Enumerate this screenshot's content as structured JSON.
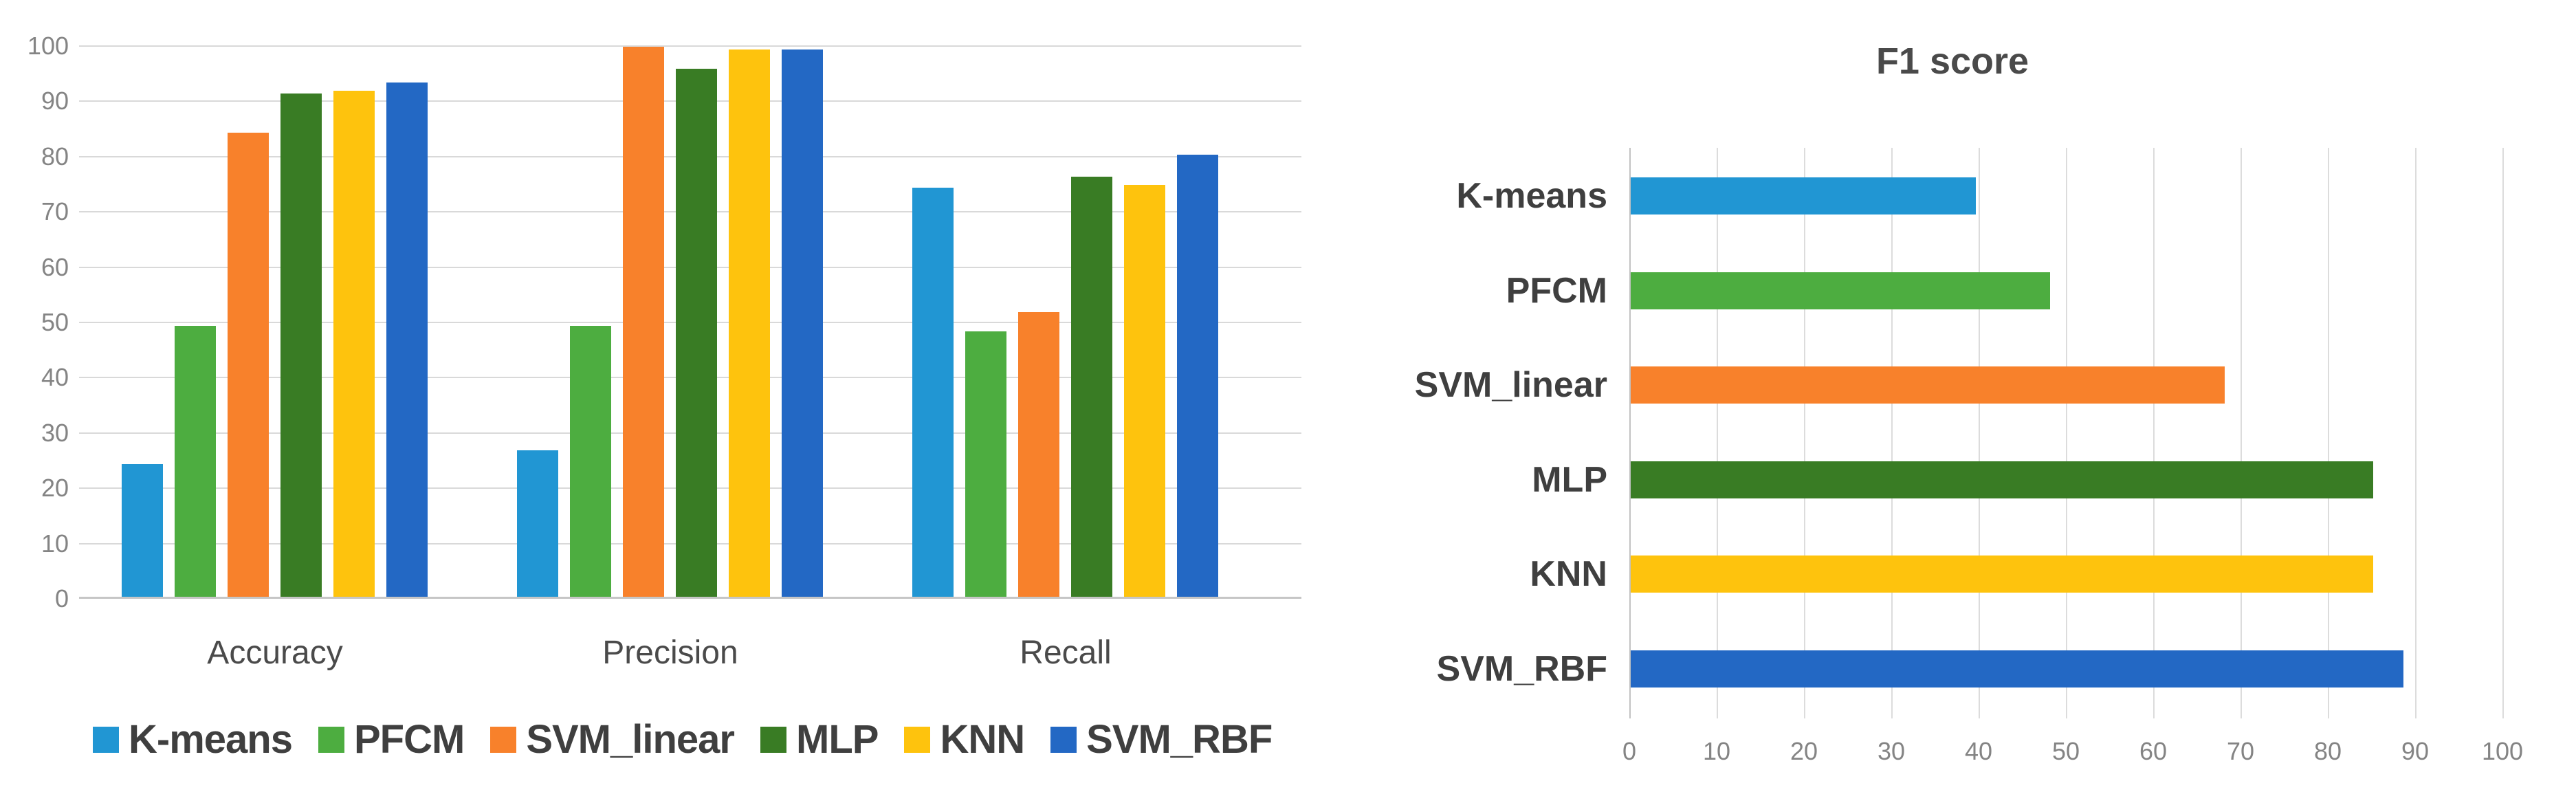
{
  "page": {
    "background": "#ffffff"
  },
  "palette": {
    "kmeans": "#2196d3",
    "pfcm": "#4dad40",
    "svm_linear": "#f8812b",
    "mlp": "#397c24",
    "knn": "#fec30d",
    "svm_rbf": "#2368c4",
    "gridline": "#d9d9d9",
    "axis_line": "#c6c6c6",
    "tick_text": "#848484",
    "label_text": "#3f3f3f"
  },
  "chart_data": [
    {
      "type": "bar",
      "title": "",
      "categories": [
        "Accuracy",
        "Precision",
        "Recall"
      ],
      "series": [
        {
          "name": "K-means",
          "color": "#2196d3",
          "values": [
            24,
            26.5,
            74
          ]
        },
        {
          "name": "PFCM",
          "color": "#4dad40",
          "values": [
            49,
            49,
            48
          ]
        },
        {
          "name": "SVM_linear",
          "color": "#f8812b",
          "values": [
            84,
            99.5,
            51.5
          ]
        },
        {
          "name": "MLP",
          "color": "#397c24",
          "values": [
            91,
            95.5,
            76
          ]
        },
        {
          "name": "KNN",
          "color": "#fec30d",
          "values": [
            91.5,
            99,
            74.5
          ]
        },
        {
          "name": "SVM_RBF",
          "color": "#2368c4",
          "values": [
            93,
            99,
            80
          ]
        }
      ],
      "ylim": [
        0,
        100
      ],
      "yticks": [
        "0",
        "10",
        "20",
        "30",
        "40",
        "50",
        "60",
        "70",
        "80",
        "90",
        "100"
      ],
      "grid": "horizontal",
      "legend_position": "bottom-left"
    },
    {
      "type": "bar-horizontal",
      "title": "F1 score",
      "categories": [
        "K-means",
        "PFCM",
        "SVM_linear",
        "MLP",
        "KNN",
        "SVM_RBF"
      ],
      "values": [
        39.5,
        48,
        68,
        85,
        85,
        88.5
      ],
      "colors": [
        "#2196d3",
        "#4dad40",
        "#f8812b",
        "#397c24",
        "#fec30d",
        "#2368c4"
      ],
      "xlim": [
        0,
        100
      ],
      "xticks": [
        "0",
        "10",
        "20",
        "30",
        "40",
        "50",
        "60",
        "70",
        "80",
        "90",
        "100"
      ],
      "grid": "vertical",
      "legend_position": "none"
    }
  ]
}
